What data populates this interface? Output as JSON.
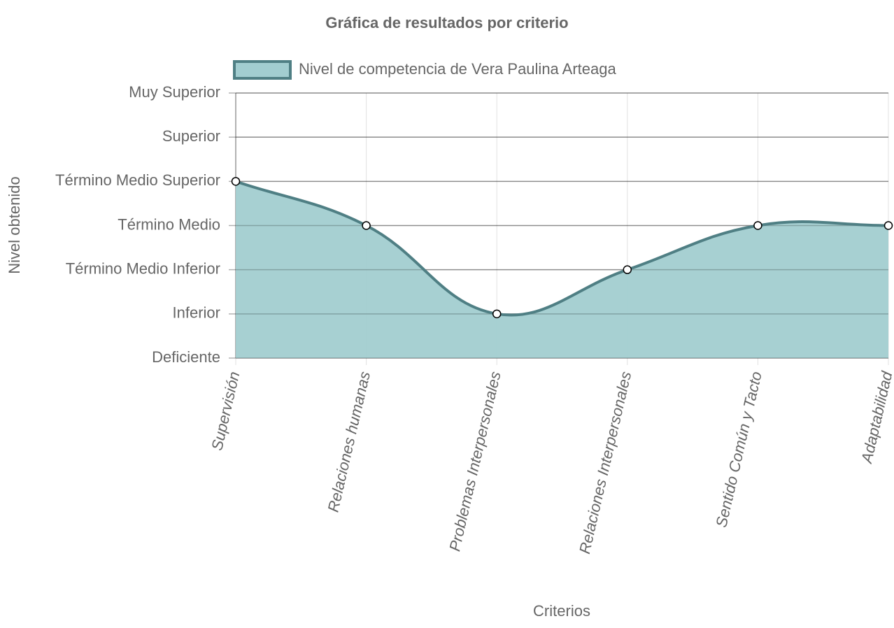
{
  "chart_data": {
    "type": "line",
    "title": "Gráfica de resultados por criterio",
    "x_label": "Criterios",
    "y_label": "Nivel obtenido",
    "categories": [
      "Supervisión",
      "Relaciones humanas",
      "Problemas Interpersonales",
      "Relaciones Interpersonales",
      "Sentido Común y Tacto",
      "Adaptabilidad"
    ],
    "series": [
      {
        "name": "Nivel de competencia de Vera Paulina Arteaga",
        "color": "#4f7f84",
        "fill": "#a2cdd0",
        "values": [
          4,
          3,
          1,
          2,
          3,
          3
        ]
      }
    ],
    "ylim": [
      0,
      6
    ],
    "yticks": [
      {
        "value": 0,
        "label": "Deficiente"
      },
      {
        "value": 1,
        "label": "Inferior"
      },
      {
        "value": 2,
        "label": "Término Medio Inferior"
      },
      {
        "value": 3,
        "label": "Término Medio"
      },
      {
        "value": 4,
        "label": "Término Medio Superior"
      },
      {
        "value": 5,
        "label": "Superior"
      },
      {
        "value": 6,
        "label": "Muy Superior"
      }
    ],
    "grid": true,
    "legend": "top"
  }
}
